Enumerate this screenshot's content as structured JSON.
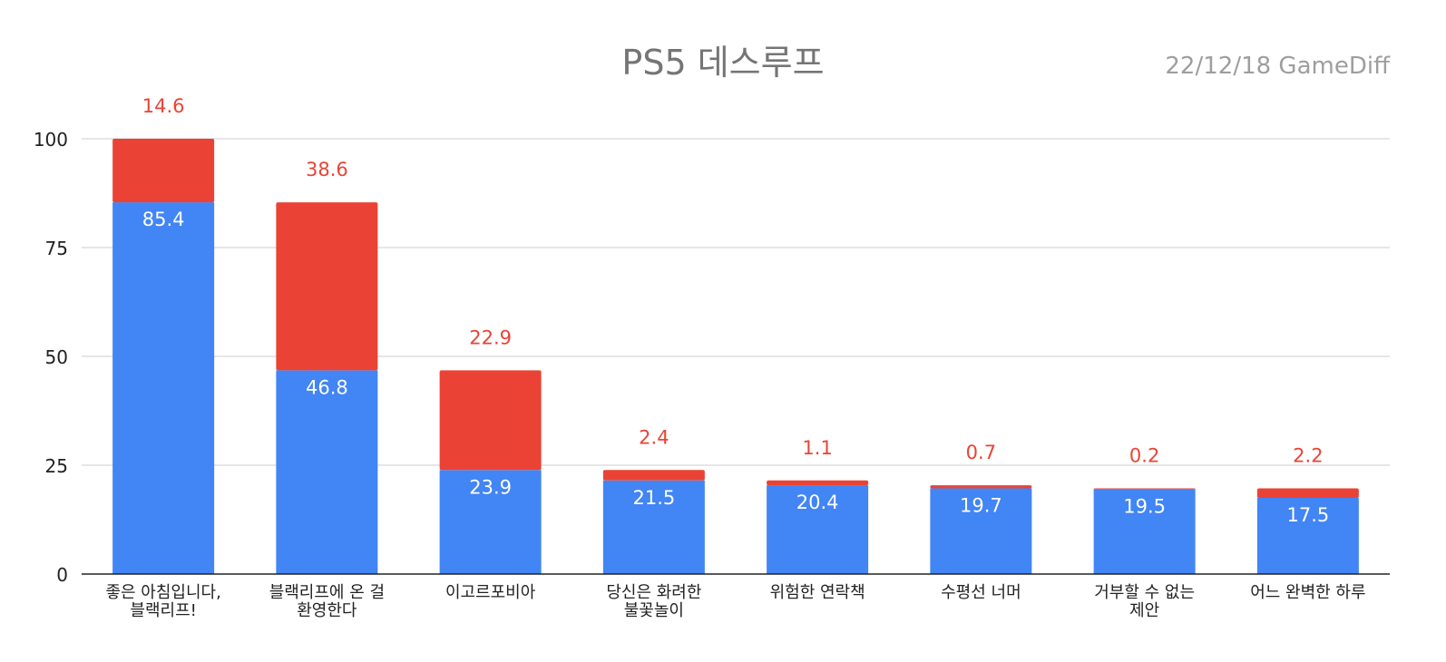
{
  "chart_data": {
    "type": "bar",
    "stacked": true,
    "title": "PS5 데스루프",
    "subtitle": "22/12/18  GameDiff",
    "categories": [
      [
        "좋은 아침입니다,",
        "블랙리프!"
      ],
      [
        "블랙리프에 온 걸",
        "환영한다"
      ],
      [
        "이고르포비아"
      ],
      [
        "당신은 화려한",
        "불꽃놀이"
      ],
      [
        "위험한 연락책"
      ],
      [
        "수평선 너머"
      ],
      [
        "거부할 수 없는",
        "제안"
      ],
      [
        "어느 완벽한 하루"
      ]
    ],
    "series": [
      {
        "name": "blue",
        "color": "#4285f4",
        "values": [
          85.4,
          46.8,
          23.9,
          21.5,
          20.4,
          19.7,
          19.5,
          17.5
        ]
      },
      {
        "name": "red",
        "color": "#ea4335",
        "values": [
          14.6,
          38.6,
          22.9,
          2.4,
          1.1,
          0.7,
          0.2,
          2.2
        ]
      }
    ],
    "ylim": [
      0,
      100
    ],
    "yticks": [
      "0",
      "25",
      "50",
      "75",
      "100"
    ],
    "ytick_values": [
      0,
      25,
      50,
      75,
      100
    ],
    "xlabel": "",
    "ylabel": "",
    "grid": true
  }
}
